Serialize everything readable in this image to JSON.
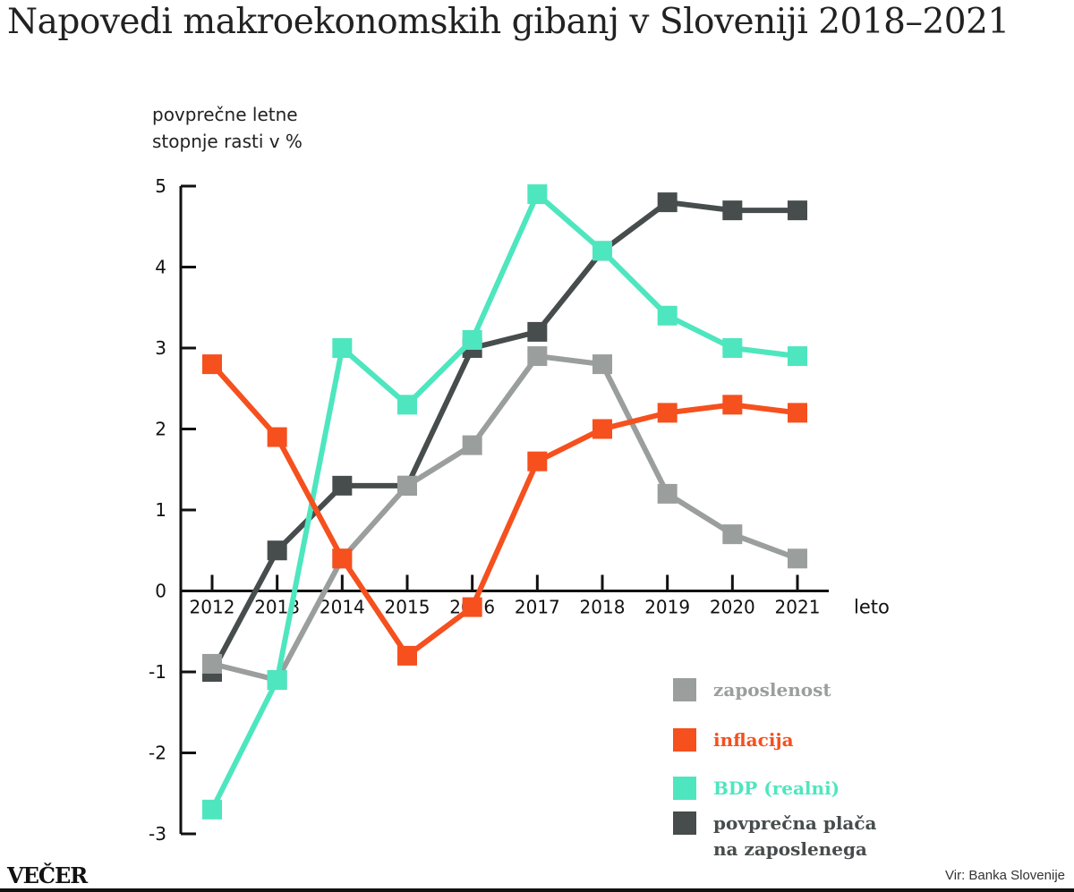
{
  "chart_data": {
    "type": "line",
    "title": "Napovedi makroekonomskih gibanj v Sloveniji 2018–2021",
    "ylabel_lines": [
      "povprečne letne",
      "stopnje rasti v %"
    ],
    "xlabel": "leto",
    "x": [
      2012,
      2013,
      2014,
      2015,
      2016,
      2017,
      2018,
      2019,
      2020,
      2021
    ],
    "yticks": [
      5,
      4,
      3,
      2,
      1,
      0,
      -1,
      -2,
      -3
    ],
    "ylim": [
      -3,
      5
    ],
    "grid": false,
    "legend_position": "bottom-right",
    "series": [
      {
        "name": "povprečna plača na zaposlenega",
        "legend_lines": [
          "povprečna plača",
          "na zaposlenega"
        ],
        "color": "#474c4c",
        "values": [
          -1.0,
          0.5,
          1.3,
          1.3,
          3.0,
          3.2,
          4.2,
          4.8,
          4.7,
          4.7
        ]
      },
      {
        "name": "zaposlenost",
        "legend_lines": [
          "zaposlenost"
        ],
        "color": "#9a9e9d",
        "values": [
          -0.9,
          -1.1,
          0.4,
          1.3,
          1.8,
          2.9,
          2.8,
          1.2,
          0.7,
          0.4
        ]
      },
      {
        "name": "BDP (realni)",
        "legend_lines": [
          "BDP (realni)"
        ],
        "color": "#4ee6bf",
        "values": [
          -2.7,
          -1.1,
          3.0,
          2.3,
          3.1,
          4.9,
          4.2,
          3.4,
          3.0,
          2.9
        ]
      },
      {
        "name": "inflacija",
        "legend_lines": [
          "inflacija"
        ],
        "color": "#f5501e",
        "values": [
          2.8,
          1.9,
          0.4,
          -0.8,
          -0.2,
          1.6,
          2.0,
          2.2,
          2.3,
          2.2
        ]
      }
    ],
    "legend_order": [
      1,
      3,
      2,
      0
    ]
  },
  "footer": {
    "logo": "VEČER",
    "source": "Vir: Banka Slovenije"
  }
}
